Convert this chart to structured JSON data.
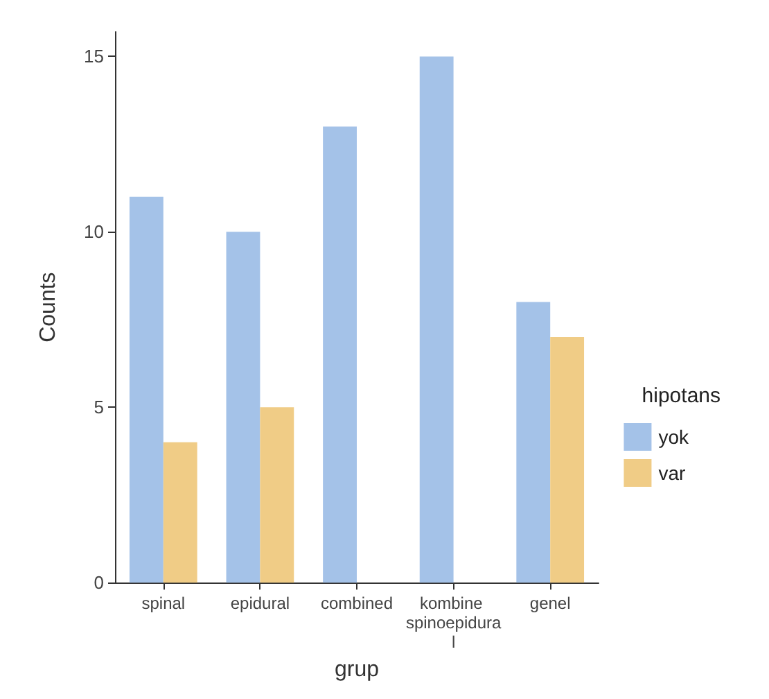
{
  "chart_data": {
    "type": "bar",
    "xlabel": "grup",
    "ylabel": "Counts",
    "legend_title": "hipotans",
    "categories": [
      "spinal",
      "epidural",
      "combined",
      "kombine spinoepidural",
      "genel"
    ],
    "series": [
      {
        "name": "yok",
        "color": "#a4c2e8",
        "values": [
          11,
          10,
          13,
          15,
          8
        ]
      },
      {
        "name": "var",
        "color": "#f0cc86",
        "values": [
          4,
          5,
          null,
          null,
          7
        ]
      }
    ],
    "ylim": [
      0,
      15.7
    ],
    "yticks": [
      0,
      5,
      10,
      15
    ],
    "grid": false,
    "legend": "right"
  }
}
